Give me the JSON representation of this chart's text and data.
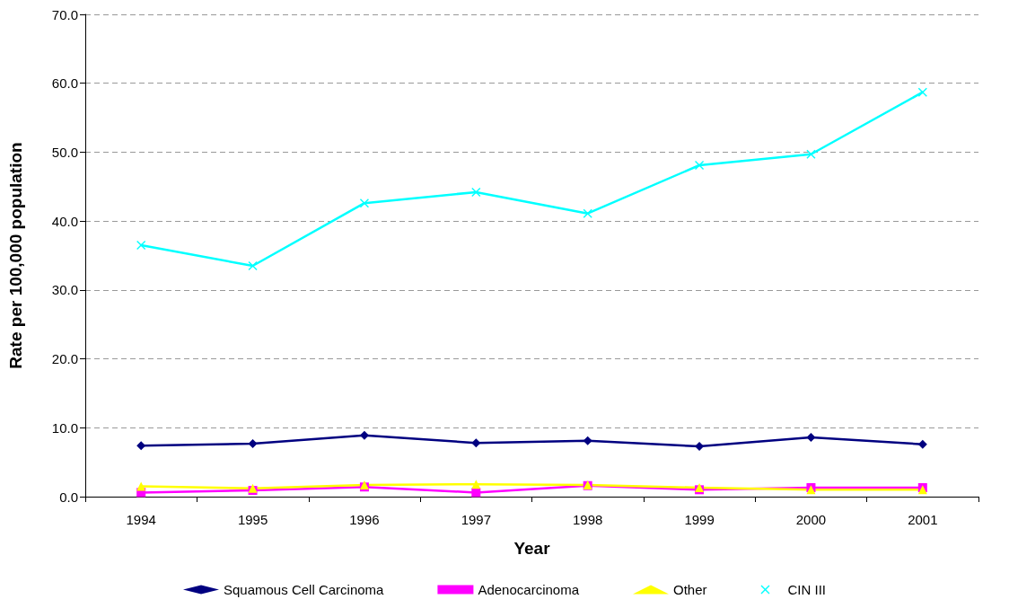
{
  "chart_data": {
    "type": "line",
    "xlabel": "Year",
    "ylabel": "Rate per 100,000 population",
    "categories": [
      "1994",
      "1995",
      "1996",
      "1997",
      "1998",
      "1999",
      "2000",
      "2001"
    ],
    "series": [
      {
        "name": "Squamous Cell Carcinoma",
        "color": "#000080",
        "marker": "diamond",
        "values": [
          7.4,
          7.7,
          8.9,
          7.8,
          8.1,
          7.3,
          8.6,
          7.6
        ]
      },
      {
        "name": "Adenocarcinoma",
        "color": "#ff00ff",
        "marker": "square",
        "values": [
          0.6,
          0.9,
          1.4,
          0.6,
          1.6,
          1.0,
          1.3,
          1.3
        ]
      },
      {
        "name": "Other",
        "color": "#ffff00",
        "marker": "triangle",
        "values": [
          1.5,
          1.2,
          1.7,
          1.8,
          1.7,
          1.3,
          1.0,
          1.0
        ]
      },
      {
        "name": "CIN III",
        "color": "#00ffff",
        "marker": "cross",
        "values": [
          36.5,
          33.5,
          42.6,
          44.2,
          41.1,
          48.1,
          49.7,
          58.7
        ]
      }
    ],
    "ylim": [
      0,
      70
    ],
    "yticks": [
      {
        "value": 0,
        "label": "0.0"
      },
      {
        "value": 10,
        "label": "10.0"
      },
      {
        "value": 20,
        "label": "20.0"
      },
      {
        "value": 30,
        "label": "30.0"
      },
      {
        "value": 40,
        "label": "40.0"
      },
      {
        "value": 50,
        "label": "50.0"
      },
      {
        "value": 60,
        "label": "60.0"
      },
      {
        "value": 70,
        "label": "70.0"
      }
    ],
    "grid": "y",
    "legend": "bottom",
    "line_style": "solid"
  }
}
